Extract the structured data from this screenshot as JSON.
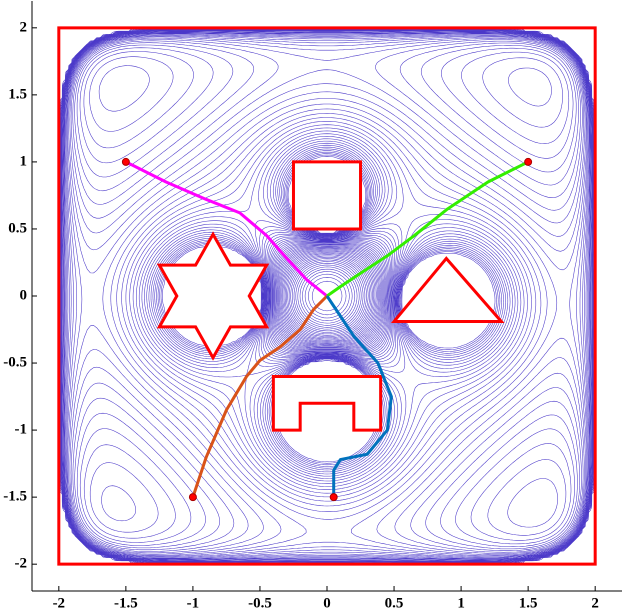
{
  "chart_data": {
    "type": "line",
    "xlim": [
      -2.2,
      2.2
    ],
    "ylim": [
      -2.2,
      2.2
    ],
    "xticks": [
      -2,
      -1.5,
      -1,
      -0.5,
      0,
      0.5,
      1,
      1.5,
      2
    ],
    "yticks": [
      -2,
      -1.5,
      -1,
      -0.5,
      0,
      0.5,
      1,
      1.5,
      2
    ],
    "boundary": {
      "x": [
        -2,
        2,
        2,
        -2
      ],
      "y": [
        2,
        2,
        -2,
        -2
      ],
      "color": "#ff0000"
    },
    "obstacles": [
      {
        "x": [
          -0.25,
          0.25,
          0.25,
          -0.25
        ],
        "y": [
          1,
          1,
          0.5,
          0.5
        ]
      },
      {
        "x": [
          -0.85,
          -0.98,
          -1.25,
          -1.12,
          -1.25,
          -0.98,
          -0.85,
          -0.72,
          -0.45,
          -0.58,
          -0.45,
          -0.72
        ],
        "y": [
          0.46,
          0.23,
          0.23,
          0,
          -0.23,
          -0.23,
          -0.46,
          -0.23,
          -0.23,
          0,
          0.23,
          0.23
        ]
      },
      {
        "x": [
          0.89,
          1.3,
          0.5
        ],
        "y": [
          0.28,
          -0.19,
          -0.19
        ]
      },
      {
        "x": [
          -0.4,
          0.4,
          0.4,
          0.2,
          0.2,
          -0.2,
          -0.2,
          -0.4
        ],
        "y": [
          -0.6,
          -0.6,
          -1,
          -1,
          -0.8,
          -0.8,
          -1,
          -1
        ]
      }
    ],
    "obstacle_color": "#ff0000",
    "start_color": "#ff0000",
    "series": [
      {
        "color": "#ff00ff",
        "x": [
          -1.5,
          -1.2,
          -0.9,
          -0.65,
          -0.45,
          -0.3,
          -0.15,
          0
        ],
        "values": [
          1,
          0.85,
          0.72,
          0.62,
          0.45,
          0.28,
          0.12,
          0
        ]
      },
      {
        "color": "#33ee00",
        "x": [
          1.5,
          1.2,
          0.9,
          0.65,
          0.45,
          0.25,
          0.1,
          0
        ],
        "values": [
          1,
          0.85,
          0.65,
          0.45,
          0.3,
          0.17,
          0.07,
          0
        ]
      },
      {
        "color": "#d95319",
        "x": [
          -1,
          -0.9,
          -0.75,
          -0.6,
          -0.5,
          -0.35,
          -0.2,
          -0.1,
          0
        ],
        "values": [
          -1.5,
          -1.2,
          -0.85,
          -0.6,
          -0.48,
          -0.38,
          -0.25,
          -0.1,
          0
        ]
      },
      {
        "color": "#0072bd",
        "x": [
          0.05,
          0.05,
          0.1,
          0.3,
          0.45,
          0.48,
          0.38,
          0.2,
          0.1,
          0
        ],
        "values": [
          -1.5,
          -1.3,
          -1.22,
          -1.18,
          -1,
          -0.75,
          -0.5,
          -0.3,
          -0.15,
          0
        ]
      }
    ]
  }
}
